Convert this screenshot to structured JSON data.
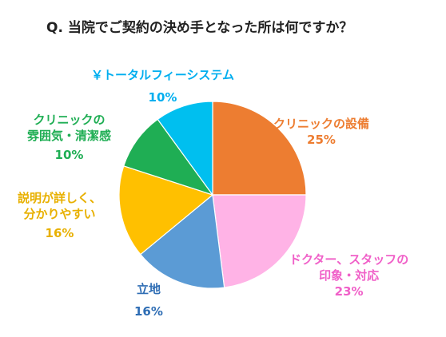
{
  "chart_data": {
    "type": "pie",
    "title": "Q.  当院でご契約の決め手となった所は何ですか？",
    "slices": [
      {
        "label": "クリニックの設備",
        "lines": [
          "クリニックの設備"
        ],
        "value": 25,
        "pct_text": "25%",
        "color": "#ED7D31"
      },
      {
        "label": "ドクター、スタッフの印象・対応",
        "lines": [
          "ドクター、スタッフの",
          "印象・対応"
        ],
        "value": 23,
        "pct_text": "23%",
        "color": "#FFB3E6"
      },
      {
        "label": "立地",
        "lines": [
          "立地"
        ],
        "value": 16,
        "pct_text": "16%",
        "color": "#5B9BD5"
      },
      {
        "label": "説明が詳しく、分かりやすい",
        "lines": [
          "説明が詳しく、",
          "分かりやすい"
        ],
        "value": 16,
        "pct_text": "16%",
        "color": "#FFC000"
      },
      {
        "label": "クリニックの雰囲気・清潔感",
        "lines": [
          "クリニックの",
          "雰囲気・清潔感"
        ],
        "value": 10,
        "pct_text": "10%",
        "color": "#1FAE54"
      },
      {
        "label": "￥トータルフィーシステム",
        "lines": [
          "￥トータルフィーシステム"
        ],
        "value": 10,
        "pct_text": "10%",
        "color": "#00BFEF"
      }
    ]
  }
}
